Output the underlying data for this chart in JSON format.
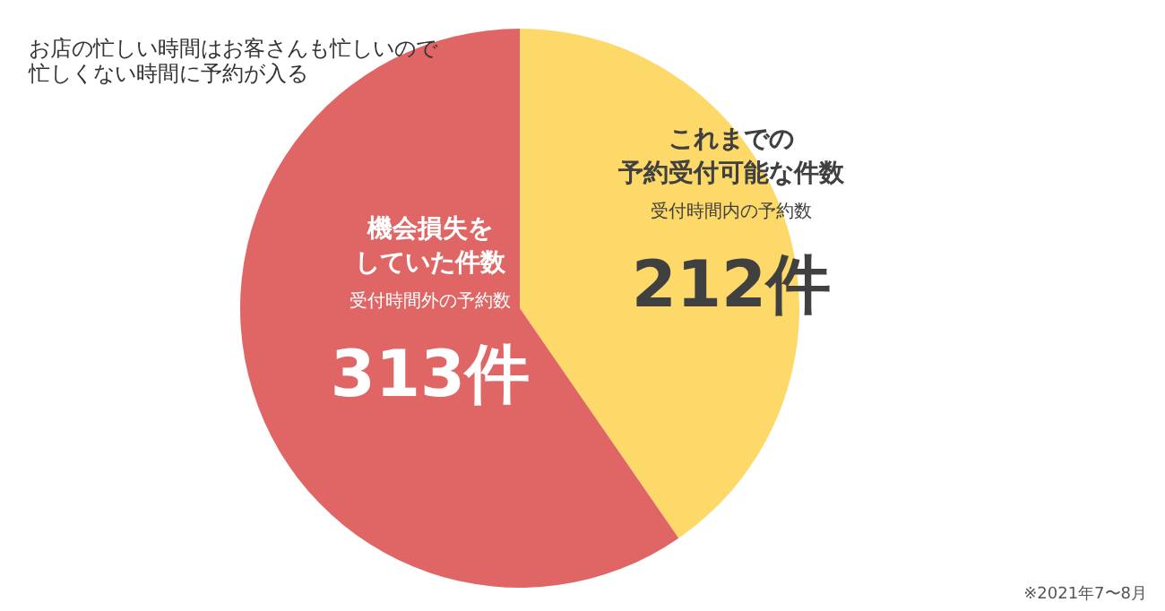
{
  "chart_data": {
    "type": "pie",
    "title": "お店の忙しい時間はお客さんも忙しいので忙しくない時間に予約が入る",
    "categories": [
      "これまでの予約受付可能な件数",
      "機会損失をしていた件数"
    ],
    "values": [
      212,
      313
    ],
    "colors": [
      "#fdd96a",
      "#e06666"
    ],
    "value_labels": [
      "212件",
      "313件"
    ],
    "annotations": [
      "受付時間内の予約数",
      "受付時間外の予約数",
      "※2021年7〜8月"
    ],
    "legend": false
  }
}
